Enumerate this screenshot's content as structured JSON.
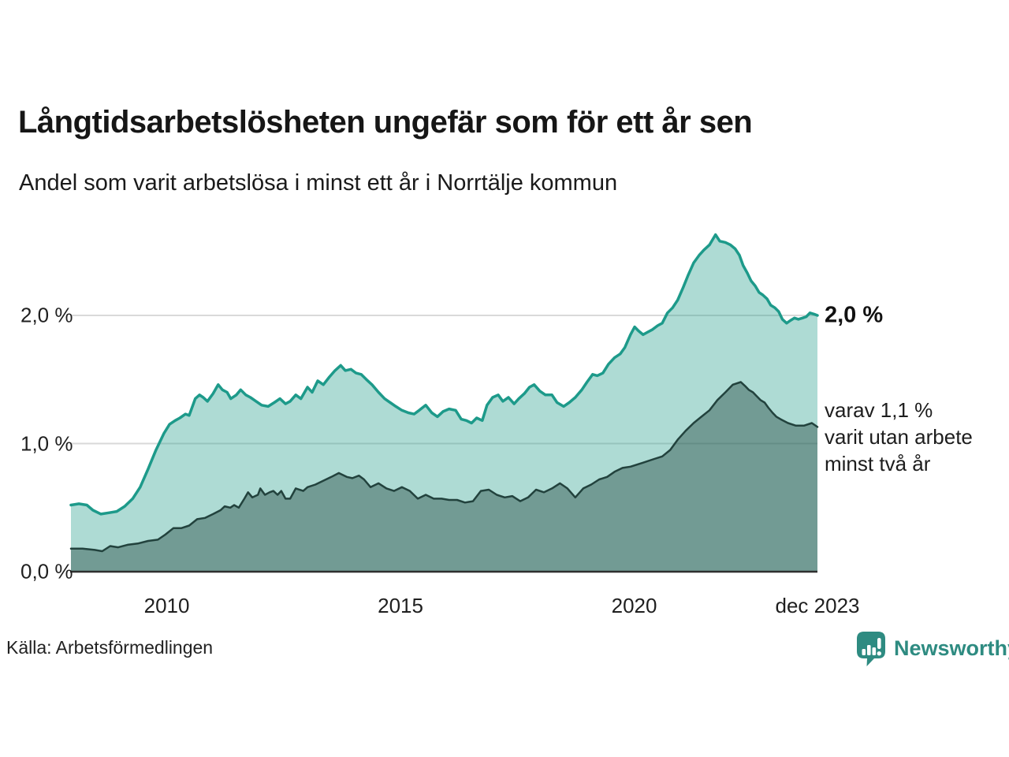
{
  "header": {
    "title": "Långtidsarbetslösheten ungefär som för ett år sen",
    "subtitle": "Andel som varit arbetslösa i minst ett år i Norrtälje kommun"
  },
  "chart_data": {
    "type": "area",
    "title": "Långtidsarbetslösheten ungefär som för ett år sen",
    "subtitle": "Andel som varit arbetslösa i minst ett år i Norrtälje kommun",
    "unit": "%",
    "grid": true,
    "x_axis": {
      "range": [
        2007.95,
        2023.92
      ],
      "ticks": [
        {
          "value": 2010,
          "label": "2010"
        },
        {
          "value": 2015,
          "label": "2015"
        },
        {
          "value": 2020,
          "label": "2020"
        },
        {
          "value": 2023.92,
          "label": "dec 2023"
        }
      ]
    },
    "y_axis": {
      "range": [
        0,
        2.7
      ],
      "ticks": [
        {
          "value": 0,
          "label": "0,0 %"
        },
        {
          "value": 1,
          "label": "1,0 %"
        },
        {
          "value": 2,
          "label": "2,0 %"
        }
      ]
    },
    "series": [
      {
        "name": "Andel som varit arbetslösa i minst ett år",
        "line_color": "#1d9a8a",
        "fill_color": "rgba(41,160,143,0.38)",
        "line_width": 3.5,
        "end_value": 2.0,
        "points": [
          [
            2007.95,
            0.52
          ],
          [
            2008.12,
            0.53
          ],
          [
            2008.29,
            0.52
          ],
          [
            2008.42,
            0.48
          ],
          [
            2008.59,
            0.45
          ],
          [
            2008.76,
            0.46
          ],
          [
            2008.93,
            0.47
          ],
          [
            2009.1,
            0.51
          ],
          [
            2009.27,
            0.57
          ],
          [
            2009.43,
            0.66
          ],
          [
            2009.6,
            0.8
          ],
          [
            2009.77,
            0.95
          ],
          [
            2009.94,
            1.08
          ],
          [
            2010.06,
            1.15
          ],
          [
            2010.18,
            1.18
          ],
          [
            2010.28,
            1.2
          ],
          [
            2010.4,
            1.23
          ],
          [
            2010.48,
            1.22
          ],
          [
            2010.61,
            1.35
          ],
          [
            2010.7,
            1.38
          ],
          [
            2010.78,
            1.36
          ],
          [
            2010.87,
            1.33
          ],
          [
            2010.99,
            1.39
          ],
          [
            2011.1,
            1.46
          ],
          [
            2011.19,
            1.42
          ],
          [
            2011.29,
            1.4
          ],
          [
            2011.37,
            1.35
          ],
          [
            2011.49,
            1.38
          ],
          [
            2011.58,
            1.42
          ],
          [
            2011.69,
            1.38
          ],
          [
            2011.79,
            1.36
          ],
          [
            2011.91,
            1.33
          ],
          [
            2012.03,
            1.3
          ],
          [
            2012.17,
            1.29
          ],
          [
            2012.3,
            1.32
          ],
          [
            2012.42,
            1.35
          ],
          [
            2012.54,
            1.31
          ],
          [
            2012.64,
            1.33
          ],
          [
            2012.76,
            1.38
          ],
          [
            2012.87,
            1.35
          ],
          [
            2013.01,
            1.44
          ],
          [
            2013.11,
            1.4
          ],
          [
            2013.23,
            1.49
          ],
          [
            2013.35,
            1.46
          ],
          [
            2013.48,
            1.52
          ],
          [
            2013.6,
            1.57
          ],
          [
            2013.72,
            1.61
          ],
          [
            2013.82,
            1.57
          ],
          [
            2013.94,
            1.58
          ],
          [
            2014.05,
            1.55
          ],
          [
            2014.16,
            1.54
          ],
          [
            2014.27,
            1.5
          ],
          [
            2014.39,
            1.46
          ],
          [
            2014.53,
            1.4
          ],
          [
            2014.66,
            1.35
          ],
          [
            2014.78,
            1.32
          ],
          [
            2014.9,
            1.29
          ],
          [
            2015.03,
            1.26
          ],
          [
            2015.17,
            1.24
          ],
          [
            2015.29,
            1.23
          ],
          [
            2015.4,
            1.26
          ],
          [
            2015.54,
            1.3
          ],
          [
            2015.67,
            1.24
          ],
          [
            2015.79,
            1.21
          ],
          [
            2015.91,
            1.25
          ],
          [
            2016.04,
            1.27
          ],
          [
            2016.18,
            1.26
          ],
          [
            2016.3,
            1.19
          ],
          [
            2016.41,
            1.18
          ],
          [
            2016.52,
            1.16
          ],
          [
            2016.63,
            1.2
          ],
          [
            2016.75,
            1.18
          ],
          [
            2016.85,
            1.3
          ],
          [
            2016.97,
            1.36
          ],
          [
            2017.09,
            1.38
          ],
          [
            2017.19,
            1.33
          ],
          [
            2017.31,
            1.36
          ],
          [
            2017.43,
            1.31
          ],
          [
            2017.53,
            1.35
          ],
          [
            2017.65,
            1.39
          ],
          [
            2017.76,
            1.44
          ],
          [
            2017.86,
            1.46
          ],
          [
            2017.98,
            1.41
          ],
          [
            2018.1,
            1.38
          ],
          [
            2018.24,
            1.38
          ],
          [
            2018.35,
            1.32
          ],
          [
            2018.49,
            1.29
          ],
          [
            2018.61,
            1.32
          ],
          [
            2018.74,
            1.36
          ],
          [
            2018.88,
            1.42
          ],
          [
            2018.99,
            1.48
          ],
          [
            2019.11,
            1.54
          ],
          [
            2019.21,
            1.53
          ],
          [
            2019.33,
            1.55
          ],
          [
            2019.45,
            1.62
          ],
          [
            2019.58,
            1.67
          ],
          [
            2019.7,
            1.7
          ],
          [
            2019.8,
            1.75
          ],
          [
            2019.92,
            1.85
          ],
          [
            2020.01,
            1.91
          ],
          [
            2020.09,
            1.88
          ],
          [
            2020.19,
            1.85
          ],
          [
            2020.29,
            1.87
          ],
          [
            2020.39,
            1.89
          ],
          [
            2020.5,
            1.92
          ],
          [
            2020.6,
            1.94
          ],
          [
            2020.71,
            2.02
          ],
          [
            2020.82,
            2.06
          ],
          [
            2020.93,
            2.12
          ],
          [
            2021.05,
            2.22
          ],
          [
            2021.15,
            2.31
          ],
          [
            2021.27,
            2.41
          ],
          [
            2021.39,
            2.47
          ],
          [
            2021.49,
            2.51
          ],
          [
            2021.61,
            2.55
          ],
          [
            2021.74,
            2.63
          ],
          [
            2021.83,
            2.58
          ],
          [
            2021.95,
            2.57
          ],
          [
            2022.06,
            2.55
          ],
          [
            2022.16,
            2.52
          ],
          [
            2022.25,
            2.47
          ],
          [
            2022.33,
            2.39
          ],
          [
            2022.42,
            2.33
          ],
          [
            2022.5,
            2.27
          ],
          [
            2022.59,
            2.23
          ],
          [
            2022.67,
            2.18
          ],
          [
            2022.75,
            2.16
          ],
          [
            2022.84,
            2.13
          ],
          [
            2022.92,
            2.08
          ],
          [
            2023.01,
            2.06
          ],
          [
            2023.09,
            2.03
          ],
          [
            2023.17,
            1.97
          ],
          [
            2023.26,
            1.94
          ],
          [
            2023.34,
            1.96
          ],
          [
            2023.43,
            1.98
          ],
          [
            2023.51,
            1.97
          ],
          [
            2023.6,
            1.98
          ],
          [
            2023.68,
            1.99
          ],
          [
            2023.76,
            2.02
          ],
          [
            2023.85,
            2.01
          ],
          [
            2023.92,
            2.0
          ]
        ]
      },
      {
        "name": "varav varit utan arbete minst två år",
        "line_color": "#22423d",
        "fill_color": "rgba(32,66,60,0.42)",
        "line_width": 2.5,
        "end_value": 1.1,
        "points": [
          [
            2007.95,
            0.18
          ],
          [
            2008.2,
            0.18
          ],
          [
            2008.46,
            0.17
          ],
          [
            2008.62,
            0.16
          ],
          [
            2008.79,
            0.2
          ],
          [
            2008.96,
            0.19
          ],
          [
            2009.16,
            0.21
          ],
          [
            2009.38,
            0.22
          ],
          [
            2009.6,
            0.24
          ],
          [
            2009.81,
            0.25
          ],
          [
            2009.97,
            0.29
          ],
          [
            2010.14,
            0.34
          ],
          [
            2010.31,
            0.34
          ],
          [
            2010.48,
            0.36
          ],
          [
            2010.65,
            0.41
          ],
          [
            2010.82,
            0.42
          ],
          [
            2010.99,
            0.45
          ],
          [
            2011.15,
            0.48
          ],
          [
            2011.24,
            0.51
          ],
          [
            2011.36,
            0.5
          ],
          [
            2011.44,
            0.52
          ],
          [
            2011.54,
            0.5
          ],
          [
            2011.66,
            0.57
          ],
          [
            2011.74,
            0.62
          ],
          [
            2011.83,
            0.58
          ],
          [
            2011.95,
            0.6
          ],
          [
            2012.0,
            0.65
          ],
          [
            2012.1,
            0.6
          ],
          [
            2012.2,
            0.62
          ],
          [
            2012.28,
            0.63
          ],
          [
            2012.37,
            0.6
          ],
          [
            2012.45,
            0.63
          ],
          [
            2012.54,
            0.57
          ],
          [
            2012.64,
            0.57
          ],
          [
            2012.76,
            0.65
          ],
          [
            2012.92,
            0.63
          ],
          [
            2013.01,
            0.66
          ],
          [
            2013.18,
            0.68
          ],
          [
            2013.35,
            0.71
          ],
          [
            2013.52,
            0.74
          ],
          [
            2013.68,
            0.77
          ],
          [
            2013.85,
            0.74
          ],
          [
            2013.97,
            0.73
          ],
          [
            2014.11,
            0.75
          ],
          [
            2014.22,
            0.72
          ],
          [
            2014.36,
            0.66
          ],
          [
            2014.53,
            0.69
          ],
          [
            2014.7,
            0.65
          ],
          [
            2014.86,
            0.63
          ],
          [
            2015.03,
            0.66
          ],
          [
            2015.2,
            0.63
          ],
          [
            2015.37,
            0.57
          ],
          [
            2015.54,
            0.6
          ],
          [
            2015.71,
            0.57
          ],
          [
            2015.88,
            0.57
          ],
          [
            2016.04,
            0.56
          ],
          [
            2016.21,
            0.56
          ],
          [
            2016.38,
            0.54
          ],
          [
            2016.55,
            0.55
          ],
          [
            2016.72,
            0.63
          ],
          [
            2016.89,
            0.64
          ],
          [
            2017.06,
            0.6
          ],
          [
            2017.23,
            0.58
          ],
          [
            2017.39,
            0.59
          ],
          [
            2017.56,
            0.55
          ],
          [
            2017.73,
            0.58
          ],
          [
            2017.9,
            0.64
          ],
          [
            2018.07,
            0.62
          ],
          [
            2018.24,
            0.65
          ],
          [
            2018.41,
            0.69
          ],
          [
            2018.57,
            0.65
          ],
          [
            2018.74,
            0.58
          ],
          [
            2018.91,
            0.65
          ],
          [
            2019.08,
            0.68
          ],
          [
            2019.25,
            0.72
          ],
          [
            2019.42,
            0.74
          ],
          [
            2019.58,
            0.78
          ],
          [
            2019.75,
            0.81
          ],
          [
            2019.92,
            0.82
          ],
          [
            2020.18,
            0.85
          ],
          [
            2020.43,
            0.88
          ],
          [
            2020.6,
            0.9
          ],
          [
            2020.77,
            0.95
          ],
          [
            2020.93,
            1.03
          ],
          [
            2021.1,
            1.1
          ],
          [
            2021.27,
            1.16
          ],
          [
            2021.44,
            1.21
          ],
          [
            2021.61,
            1.26
          ],
          [
            2021.78,
            1.34
          ],
          [
            2021.95,
            1.4
          ],
          [
            2022.11,
            1.46
          ],
          [
            2022.28,
            1.48
          ],
          [
            2022.37,
            1.45
          ],
          [
            2022.45,
            1.42
          ],
          [
            2022.54,
            1.4
          ],
          [
            2022.62,
            1.37
          ],
          [
            2022.7,
            1.34
          ],
          [
            2022.79,
            1.32
          ],
          [
            2022.87,
            1.28
          ],
          [
            2022.96,
            1.24
          ],
          [
            2023.04,
            1.21
          ],
          [
            2023.13,
            1.19
          ],
          [
            2023.29,
            1.16
          ],
          [
            2023.46,
            1.14
          ],
          [
            2023.63,
            1.14
          ],
          [
            2023.8,
            1.16
          ],
          [
            2023.92,
            1.13
          ]
        ]
      }
    ],
    "annotations": {
      "end_value_label": "2,0 %",
      "secondary_text": "varav 1,1 %\nvarit utan arbete\nminst två år"
    },
    "colors": {
      "gridline": "#d9d9d9",
      "axis_line": "#2f2f2f",
      "accent_teal": "#1d9a8a",
      "dark_teal": "#22423d",
      "brand_teal": "#2e8b81"
    }
  },
  "footer": {
    "source": "Källa: Arbetsförmedlingen",
    "brand_name": "Newsworthy",
    "brand_icon": "newsworthy-bubble-barchart-icon"
  }
}
